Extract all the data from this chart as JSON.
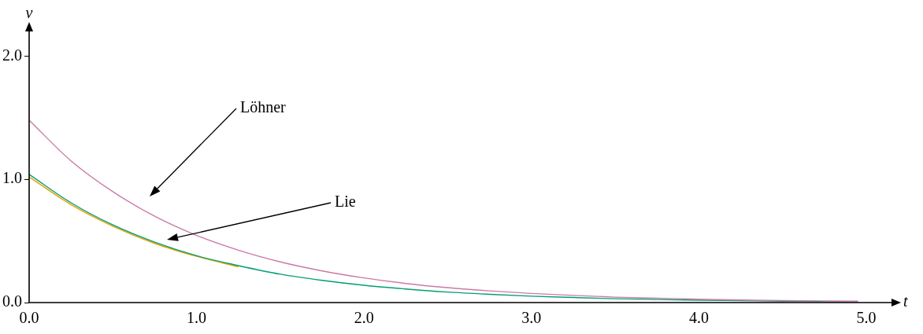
{
  "chart_data": {
    "type": "line",
    "xlabel": "t",
    "ylabel": "v",
    "x": [
      0,
      0.25,
      0.5,
      0.75,
      1,
      1.25,
      1.5,
      1.75,
      2,
      2.25,
      2.5,
      2.75,
      3,
      3.25,
      3.5,
      3.75,
      4,
      4.25,
      4.5,
      4.75,
      4.95
    ],
    "series": [
      {
        "color": "#cc79a7",
        "values": [
          1.48,
          1.15,
          0.9,
          0.7,
          0.545,
          0.425,
          0.33,
          0.257,
          0.2,
          0.155,
          0.121,
          0.095,
          0.074,
          0.058,
          0.044,
          0.036,
          0.027,
          0.021,
          0.016,
          0.013,
          0.011
        ]
      },
      {
        "color": "#009e73",
        "values": [
          1.04,
          0.81,
          0.63,
          0.49,
          0.38,
          0.3,
          0.23,
          0.18,
          0.14,
          0.11,
          0.085,
          0.067,
          0.052,
          0.041,
          0.031,
          0.025,
          0.019,
          0.015,
          0.011,
          0.009,
          0.007
        ]
      },
      {
        "color": "#e69f00",
        "values": [
          1.02,
          0.795,
          0.62,
          0.48,
          0.375,
          0.29,
          null,
          null,
          null,
          null,
          null,
          null,
          null,
          null,
          null,
          null,
          null,
          null,
          null,
          null,
          null
        ]
      }
    ],
    "xlim": [
      0,
      5.15
    ],
    "ylim": [
      0,
      2.2
    ],
    "xticks": [
      {
        "value": 0,
        "label": "0.0"
      },
      {
        "value": 1,
        "label": "1.0"
      },
      {
        "value": 2,
        "label": "2.0"
      },
      {
        "value": 3,
        "label": "3.0"
      },
      {
        "value": 4,
        "label": "4.0"
      },
      {
        "value": 5,
        "label": "5.0"
      }
    ],
    "yticks": [
      {
        "value": 0,
        "label": "0.0"
      },
      {
        "value": 1,
        "label": "1.0"
      },
      {
        "value": 2,
        "label": "2.0"
      }
    ],
    "annotations": [
      "Löhner",
      "Lie"
    ],
    "grid": false,
    "legend": false,
    "marker": "none",
    "line_style": "solid"
  }
}
